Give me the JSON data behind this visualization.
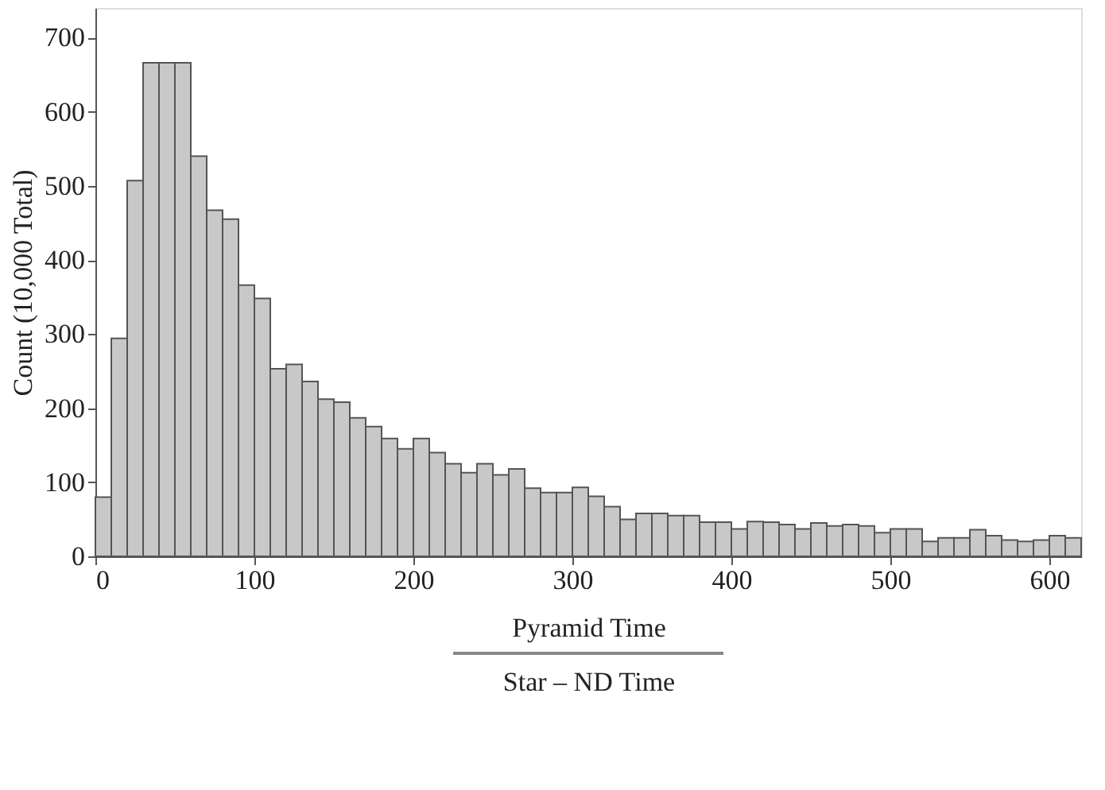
{
  "chart_data": {
    "type": "histogram",
    "xlabel": [
      "Pyramid Time",
      "Star – ND Time"
    ],
    "ylabel": "Count (10,000 Total)",
    "bins": [
      0,
      10,
      20,
      30,
      40,
      50,
      60,
      70,
      80,
      90,
      100,
      110,
      120,
      130,
      140,
      150,
      160,
      170,
      180,
      190,
      200,
      210,
      220,
      230,
      240,
      250,
      260,
      270,
      280,
      290,
      300,
      310,
      320,
      330,
      340,
      350,
      360,
      370,
      380,
      390,
      400,
      410,
      420,
      430,
      440,
      450,
      460,
      470,
      480,
      490,
      500,
      510,
      520,
      530,
      540,
      550,
      560,
      570,
      580,
      590,
      600,
      610,
      620
    ],
    "values": [
      80,
      294,
      507,
      666,
      666,
      666,
      540,
      467,
      455,
      366,
      348,
      253,
      259,
      236,
      212,
      208,
      187,
      175,
      159,
      145,
      159,
      140,
      125,
      113,
      125,
      110,
      118,
      92,
      86,
      86,
      93,
      81,
      67,
      50,
      58,
      58,
      55,
      55,
      46,
      46,
      37,
      47,
      46,
      43,
      37,
      45,
      41,
      43,
      41,
      32,
      37,
      37,
      20,
      25,
      25,
      36,
      28,
      22,
      20,
      22,
      28,
      25
    ],
    "color": "#c8c8c8",
    "xlim": [
      0,
      620
    ],
    "ylim": [
      0,
      740
    ],
    "xticks": [
      0,
      100,
      200,
      300,
      400,
      500,
      600
    ],
    "yticks": [
      0,
      100,
      200,
      300,
      400,
      500,
      600,
      700
    ],
    "grid": false
  }
}
